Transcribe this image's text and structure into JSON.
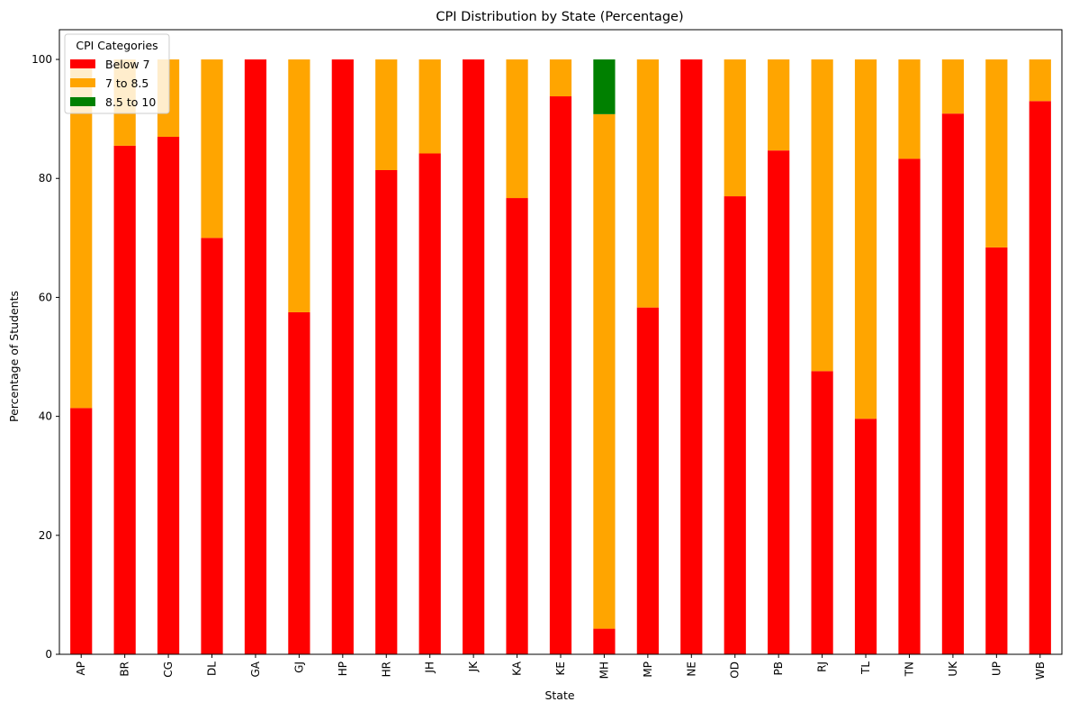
{
  "chart_data": {
    "type": "bar",
    "stacked": true,
    "title": "CPI Distribution by State (Percentage)",
    "xlabel": "State",
    "ylabel": "Percentage of Students",
    "ylim": [
      0,
      105
    ],
    "yticks": [
      "0",
      "20",
      "40",
      "60",
      "80",
      "100"
    ],
    "grid": false,
    "legend": {
      "title": "CPI Categories",
      "position": "top-left"
    },
    "categories": [
      "AP",
      "BR",
      "CG",
      "DL",
      "GA",
      "GJ",
      "HP",
      "HR",
      "JH",
      "JK",
      "KA",
      "KE",
      "MH",
      "MP",
      "NE",
      "OD",
      "PB",
      "RJ",
      "TL",
      "TN",
      "UK",
      "UP",
      "WB"
    ],
    "series": [
      {
        "name": "Below 7",
        "color": "#ff0000",
        "values": [
          41.4,
          85.5,
          87.0,
          70.0,
          100.0,
          57.5,
          100.0,
          81.4,
          84.2,
          100.0,
          76.7,
          93.8,
          4.3,
          58.3,
          100.0,
          77.0,
          84.7,
          47.6,
          39.6,
          83.3,
          90.9,
          68.4,
          93.0
        ]
      },
      {
        "name": "7 to 8.5",
        "color": "#ffa500",
        "values": [
          58.6,
          14.5,
          13.0,
          30.0,
          0.0,
          42.5,
          0.0,
          18.6,
          15.8,
          0.0,
          23.3,
          6.2,
          86.5,
          41.7,
          0.0,
          23.0,
          15.3,
          52.4,
          60.4,
          16.7,
          9.1,
          31.6,
          7.0
        ]
      },
      {
        "name": "8.5 to 10",
        "color": "#008000",
        "values": [
          0,
          0,
          0,
          0,
          0,
          0,
          0,
          0,
          0,
          0,
          0,
          0,
          9.2,
          0,
          0,
          0,
          0,
          0,
          0,
          0,
          0,
          0,
          0
        ]
      }
    ]
  }
}
